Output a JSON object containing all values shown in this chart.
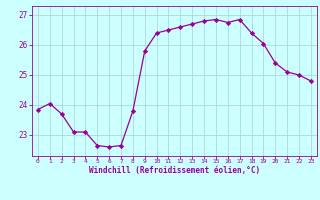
{
  "x": [
    0,
    1,
    2,
    3,
    4,
    5,
    6,
    7,
    8,
    9,
    10,
    11,
    12,
    13,
    14,
    15,
    16,
    17,
    18,
    19,
    20,
    21,
    22,
    23
  ],
  "y": [
    23.85,
    24.05,
    23.7,
    23.1,
    23.1,
    22.65,
    22.6,
    22.65,
    23.8,
    25.8,
    26.4,
    26.5,
    26.6,
    26.7,
    26.8,
    26.85,
    26.75,
    26.85,
    26.4,
    26.05,
    25.4,
    25.1,
    25.0,
    24.8
  ],
  "line_color": "#990099",
  "marker": "D",
  "marker_size": 2.2,
  "bg_color": "#ccffff",
  "grid_color": "#b0d8d8",
  "xlabel": "Windchill (Refroidissement éolien,°C)",
  "xlabel_color": "#990099",
  "tick_color": "#990099",
  "ylim": [
    22.3,
    27.3
  ],
  "xlim": [
    -0.5,
    23.5
  ],
  "yticks": [
    23,
    24,
    25,
    26,
    27
  ],
  "xticks": [
    0,
    1,
    2,
    3,
    4,
    5,
    6,
    7,
    8,
    9,
    10,
    11,
    12,
    13,
    14,
    15,
    16,
    17,
    18,
    19,
    20,
    21,
    22,
    23
  ],
  "xtick_labels": [
    "0",
    "1",
    "2",
    "3",
    "4",
    "5",
    "6",
    "7",
    "8",
    "9",
    "10",
    "11",
    "12",
    "13",
    "14",
    "15",
    "16",
    "17",
    "18",
    "19",
    "20",
    "21",
    "22",
    "23"
  ],
  "figsize": [
    3.2,
    2.0
  ],
  "dpi": 100
}
